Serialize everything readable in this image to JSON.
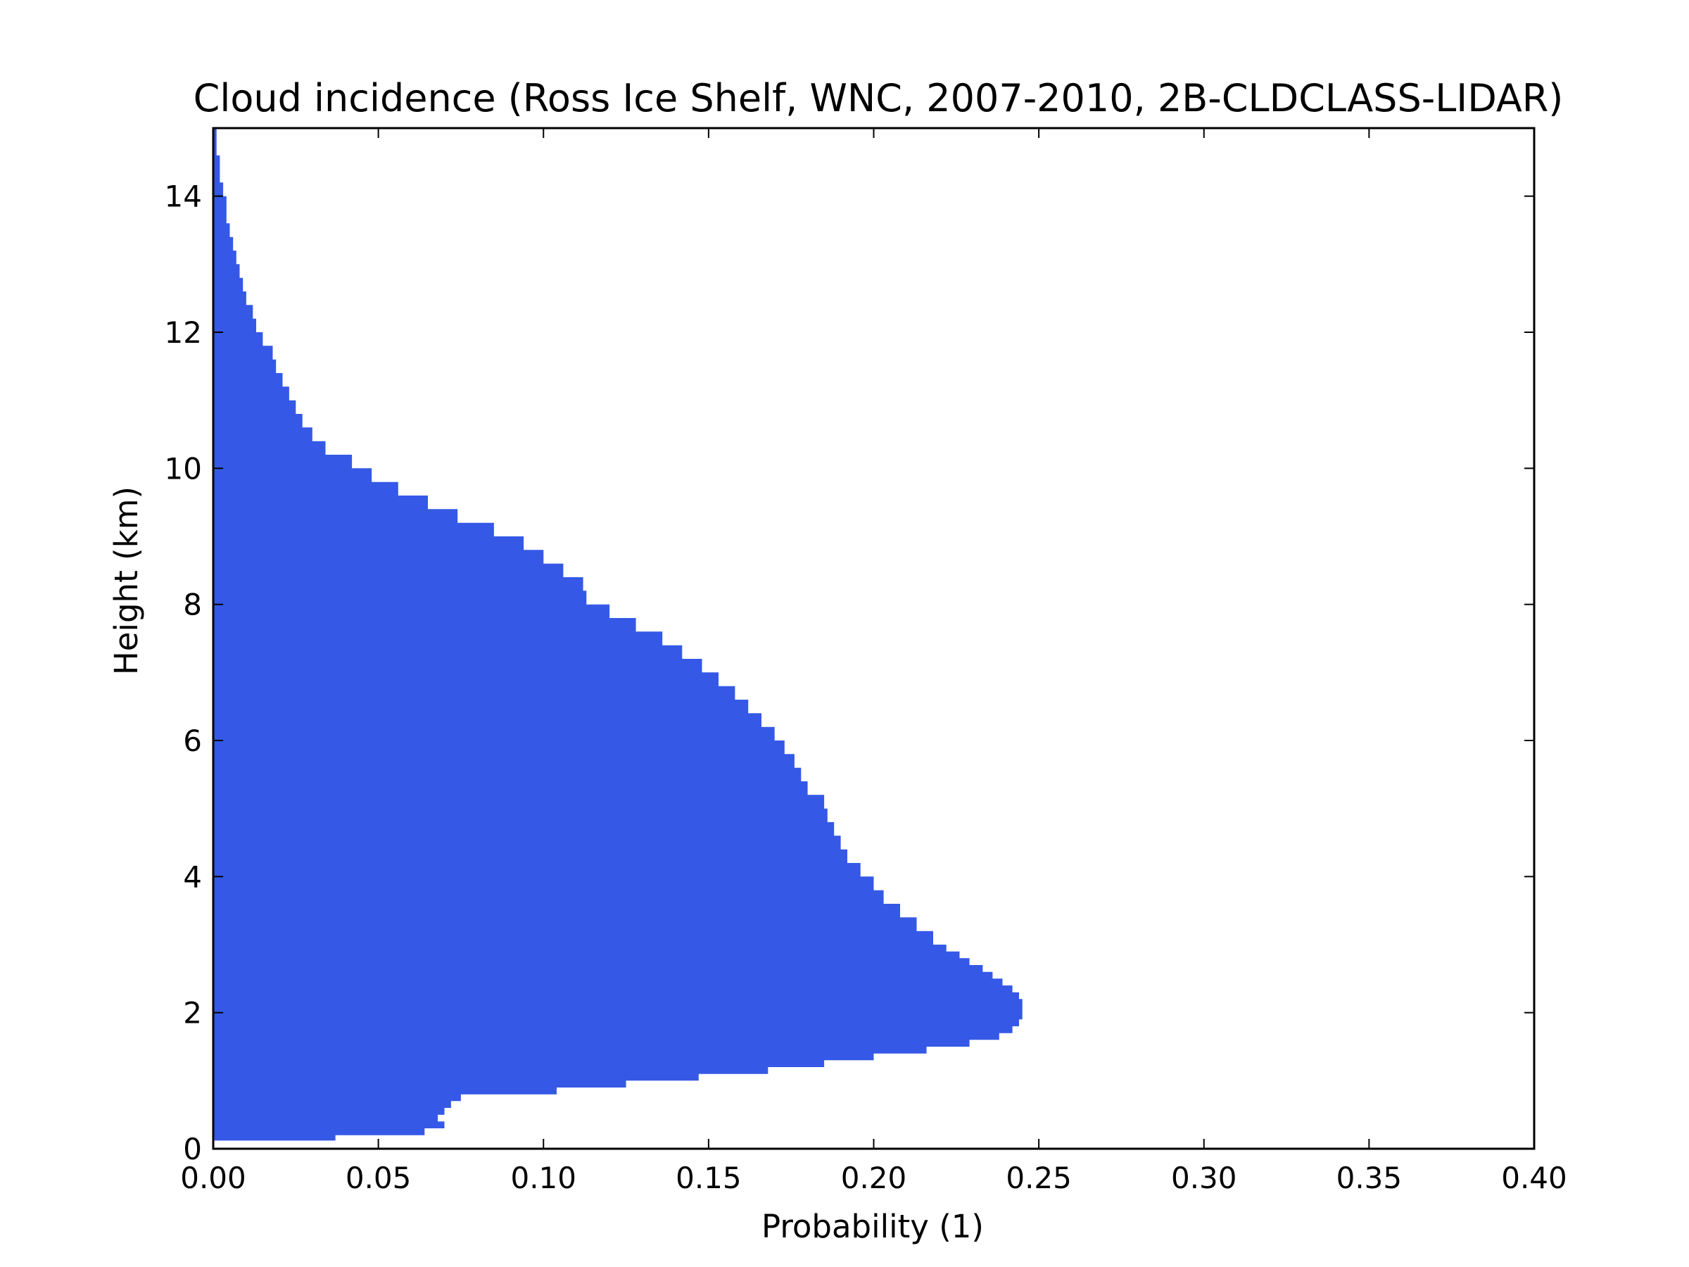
{
  "chart_data": {
    "type": "area",
    "orientation": "horizontal",
    "title": "Cloud incidence (Ross Ice Shelf, WNC, 2007-2010, 2B-CLDCLASS-LIDAR)",
    "xlabel": "Probability (1)",
    "ylabel": "Height (km)",
    "xlim": [
      0,
      0.4
    ],
    "ylim": [
      0,
      15
    ],
    "xticks": [
      "0.00",
      "0.05",
      "0.10",
      "0.15",
      "0.20",
      "0.25",
      "0.30",
      "0.35",
      "0.40"
    ],
    "yticks": [
      "0",
      "2",
      "4",
      "6",
      "8",
      "10",
      "12",
      "14"
    ],
    "grid": false,
    "fill_color": "#3559e6",
    "series": [
      {
        "height_km": [
          0.0,
          0.12,
          0.2,
          0.3,
          0.4,
          0.5,
          0.6,
          0.7,
          0.8,
          0.9,
          1.0,
          1.1,
          1.2,
          1.3,
          1.4,
          1.5,
          1.6,
          1.7,
          1.8,
          1.9,
          2.0,
          2.1,
          2.2,
          2.3,
          2.4,
          2.5,
          2.6,
          2.7,
          2.8,
          2.9,
          3.0,
          3.2,
          3.4,
          3.6,
          3.8,
          4.0,
          4.2,
          4.4,
          4.6,
          4.8,
          5.0,
          5.2,
          5.4,
          5.6,
          5.8,
          6.0,
          6.2,
          6.4,
          6.6,
          6.8,
          7.0,
          7.2,
          7.4,
          7.6,
          7.8,
          8.0,
          8.2,
          8.4,
          8.6,
          8.8,
          9.0,
          9.2,
          9.4,
          9.6,
          9.8,
          10.0,
          10.2,
          10.4,
          10.6,
          10.8,
          11.0,
          11.2,
          11.4,
          11.6,
          11.8,
          12.0,
          12.2,
          12.4,
          12.6,
          12.8,
          13.0,
          13.2,
          13.4,
          13.6,
          13.8,
          14.0,
          14.2,
          14.4,
          14.6,
          14.8,
          15.0
        ],
        "probability": [
          0.0,
          0.037,
          0.064,
          0.07,
          0.068,
          0.07,
          0.072,
          0.075,
          0.104,
          0.125,
          0.147,
          0.168,
          0.185,
          0.2,
          0.216,
          0.229,
          0.238,
          0.242,
          0.244,
          0.245,
          0.245,
          0.245,
          0.244,
          0.242,
          0.239,
          0.236,
          0.233,
          0.229,
          0.226,
          0.222,
          0.218,
          0.213,
          0.208,
          0.203,
          0.2,
          0.196,
          0.192,
          0.19,
          0.188,
          0.186,
          0.185,
          0.18,
          0.178,
          0.176,
          0.173,
          0.17,
          0.166,
          0.162,
          0.158,
          0.153,
          0.148,
          0.142,
          0.136,
          0.128,
          0.12,
          0.113,
          0.112,
          0.106,
          0.1,
          0.094,
          0.085,
          0.074,
          0.065,
          0.056,
          0.048,
          0.042,
          0.034,
          0.03,
          0.027,
          0.025,
          0.023,
          0.021,
          0.019,
          0.018,
          0.015,
          0.013,
          0.012,
          0.01,
          0.009,
          0.008,
          0.007,
          0.006,
          0.005,
          0.004,
          0.004,
          0.003,
          0.002,
          0.002,
          0.001,
          0.001,
          0.0
        ]
      }
    ]
  }
}
